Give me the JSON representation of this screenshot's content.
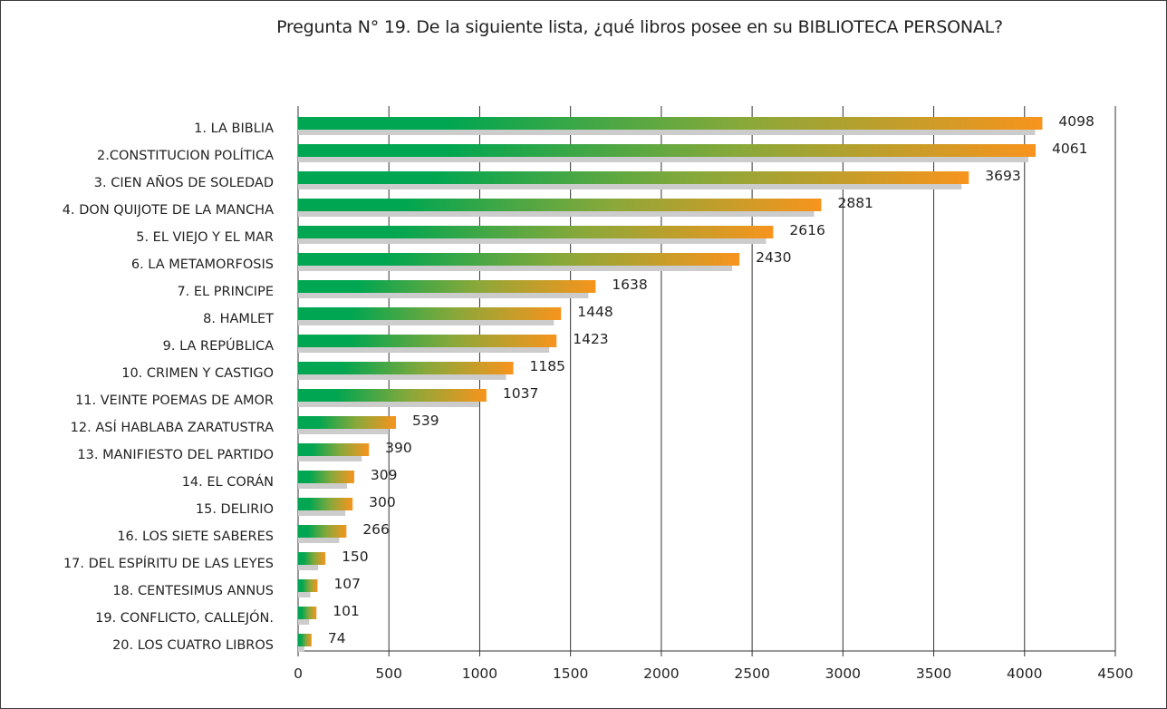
{
  "chart_data": {
    "type": "bar",
    "orientation": "horizontal",
    "title": "Pregunta N° 19. De la siguiente lista, ¿qué libros posee en su BIBLIOTECA PERSONAL?",
    "categories": [
      "1. LA BIBLIA",
      "2.CONSTITUCION POLÍTICA",
      "3. CIEN AÑOS DE SOLEDAD",
      "4. DON QUIJOTE DE LA MANCHA",
      "5. EL VIEJO Y EL MAR",
      "6. LA METAMORFOSIS",
      "7. EL PRINCIPE",
      "8. HAMLET",
      "9. LA REPÚBLICA",
      "10. CRIMEN Y CASTIGO",
      "11. VEINTE POEMAS DE AMOR",
      "12. ASÍ HABLABA ZARATUSTRA",
      "13. MANIFIESTO DEL PARTIDO",
      "14. EL CORÁN",
      "15. DELIRIO",
      "16. LOS SIETE SABERES",
      "17. DEL ESPÍRITU DE LAS LEYES",
      "18. CENTESIMUS ANNUS",
      "19. CONFLICTO, CALLEJÓN.",
      "20. LOS CUATRO LIBROS"
    ],
    "values": [
      4098,
      4061,
      3693,
      2881,
      2616,
      2430,
      1638,
      1448,
      1423,
      1185,
      1037,
      539,
      390,
      309,
      300,
      266,
      150,
      107,
      101,
      74
    ],
    "value_labels": [
      "4098",
      "4061",
      "3693",
      "2881",
      "2616",
      "2430",
      "1638",
      "1448",
      "1423",
      "1185",
      "1037",
      "539",
      "390",
      "309",
      "300",
      "266",
      "150",
      "107",
      "101",
      "74"
    ],
    "xlim": [
      0,
      4500
    ],
    "xticks": [
      "0",
      "500",
      "1000",
      "1500",
      "2000",
      "2500",
      "3000",
      "3500",
      "4000",
      "4500"
    ],
    "grid": "vertical",
    "colors": {
      "bar_start": "#00a651",
      "bar_mid": "#8aa83a",
      "bar_end": "#f7941d",
      "shadow": "#cccccc",
      "grid": "#333333"
    }
  }
}
